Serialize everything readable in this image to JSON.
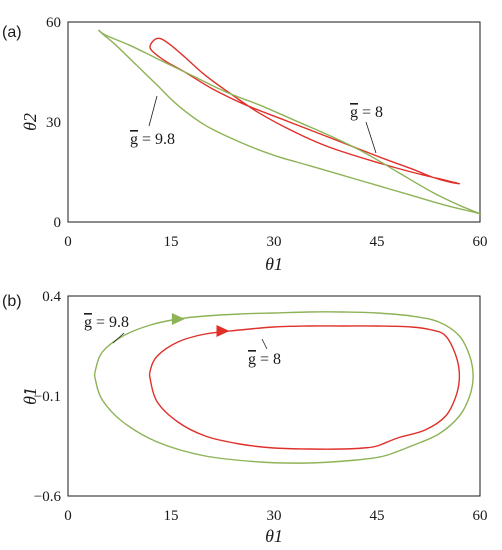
{
  "chart_data": [
    {
      "panel": "(a)",
      "type": "line",
      "xlabel": "θ1",
      "ylabel": "θ2",
      "xlim": [
        0,
        60
      ],
      "ylim": [
        0,
        60
      ],
      "xticks": [
        "0",
        "15",
        "30",
        "45",
        "60"
      ],
      "yticks": [
        "0",
        "30",
        "60"
      ],
      "grid": false,
      "series": [
        {
          "name": "g = 8",
          "color": "#e0302a",
          "points": [
            [
              12.5,
              54.5
            ],
            [
              12,
              52
            ],
            [
              14,
              48.5
            ],
            [
              17,
              45
            ],
            [
              21,
              40
            ],
            [
              26,
              35
            ],
            [
              31,
              31
            ],
            [
              36,
              27
            ],
            [
              41,
              23
            ],
            [
              46,
              19
            ],
            [
              50,
              16
            ],
            [
              53,
              13.5
            ],
            [
              55.5,
              12
            ],
            [
              57,
              11.5
            ],
            [
              55,
              12.5
            ],
            [
              50,
              15
            ],
            [
              44,
              18.5
            ],
            [
              38,
              22.5
            ],
            [
              33,
              27
            ],
            [
              28,
              32.5
            ],
            [
              24,
              38
            ],
            [
              20,
              44
            ],
            [
              17,
              49.5
            ],
            [
              15,
              53
            ],
            [
              13.5,
              55
            ]
          ]
        },
        {
          "name": "g = 9.8",
          "color": "#8db357",
          "points": [
            [
              4.5,
              57.5
            ],
            [
              5.5,
              56
            ],
            [
              9,
              53
            ],
            [
              13,
              49
            ],
            [
              18,
              44
            ],
            [
              23,
              39
            ],
            [
              28,
              35
            ],
            [
              33,
              30.5
            ],
            [
              38,
              26
            ],
            [
              43,
              21
            ],
            [
              48,
              15
            ],
            [
              53,
              9
            ],
            [
              57,
              5
            ],
            [
              60,
              2.5
            ],
            [
              59,
              3
            ],
            [
              55,
              5
            ],
            [
              50,
              8
            ],
            [
              45,
              11
            ],
            [
              40,
              14
            ],
            [
              35,
              17
            ],
            [
              30,
              20
            ],
            [
              25,
              24
            ],
            [
              20,
              29
            ],
            [
              16,
              35
            ],
            [
              13,
              41
            ],
            [
              10,
              47
            ],
            [
              7,
              53
            ],
            [
              5,
              56.5
            ]
          ]
        }
      ],
      "annotations": [
        {
          "text_prefix": "g",
          "text_value": "= 8",
          "series": "g = 8",
          "at": [
            43,
            20
          ]
        },
        {
          "text_prefix": "g",
          "text_value": "= 9.8",
          "series": "g = 9.8",
          "at": [
            13,
            46
          ]
        }
      ]
    },
    {
      "panel": "(b)",
      "type": "line",
      "xlabel": "θ1",
      "ylabel": "θ̇1",
      "xlim": [
        0,
        60
      ],
      "ylim": [
        -0.6,
        0.4
      ],
      "xticks": [
        "0",
        "15",
        "30",
        "45",
        "60"
      ],
      "yticks": [
        "−0.6",
        "−0.1",
        "0.4"
      ],
      "grid": false,
      "series": [
        {
          "name": "g = 8",
          "color": "#e0302a",
          "points": [
            [
              12,
              0.03
            ],
            [
              13,
              0.1
            ],
            [
              16,
              0.17
            ],
            [
              20,
              0.21
            ],
            [
              25,
              0.23
            ],
            [
              30,
              0.245
            ],
            [
              35,
              0.25
            ],
            [
              40,
              0.25
            ],
            [
              45,
              0.25
            ],
            [
              50,
              0.245
            ],
            [
              53,
              0.23
            ],
            [
              55,
              0.2
            ],
            [
              56.5,
              0.1
            ],
            [
              57,
              0
            ],
            [
              56.5,
              -0.1
            ],
            [
              55,
              -0.2
            ],
            [
              52,
              -0.27
            ],
            [
              48,
              -0.31
            ],
            [
              45,
              -0.35
            ],
            [
              43,
              -0.36
            ],
            [
              40,
              -0.365
            ],
            [
              35,
              -0.365
            ],
            [
              30,
              -0.36
            ],
            [
              25,
              -0.34
            ],
            [
              20,
              -0.3
            ],
            [
              16,
              -0.23
            ],
            [
              13,
              -0.13
            ],
            [
              12,
              -0.02
            ]
          ],
          "arrow": {
            "at": [
              22.5,
              0.225
            ],
            "direction": "right"
          }
        },
        {
          "name": "g = 9.8",
          "color": "#8db357",
          "points": [
            [
              4,
              0.03
            ],
            [
              5,
              0.12
            ],
            [
              8,
              0.2
            ],
            [
              12,
              0.255
            ],
            [
              16,
              0.285
            ],
            [
              20,
              0.3
            ],
            [
              25,
              0.31
            ],
            [
              30,
              0.315
            ],
            [
              35,
              0.32
            ],
            [
              40,
              0.32
            ],
            [
              45,
              0.315
            ],
            [
              50,
              0.3
            ],
            [
              54,
              0.27
            ],
            [
              57,
              0.2
            ],
            [
              58.5,
              0.1
            ],
            [
              59,
              0
            ],
            [
              58.5,
              -0.1
            ],
            [
              57,
              -0.2
            ],
            [
              54,
              -0.29
            ],
            [
              50,
              -0.35
            ],
            [
              46,
              -0.4
            ],
            [
              42,
              -0.42
            ],
            [
              35,
              -0.435
            ],
            [
              28,
              -0.43
            ],
            [
              20,
              -0.4
            ],
            [
              13,
              -0.33
            ],
            [
              8,
              -0.23
            ],
            [
              5,
              -0.12
            ],
            [
              4,
              -0.02
            ]
          ],
          "arrow": {
            "at": [
              16,
              0.285
            ],
            "direction": "right"
          }
        }
      ],
      "annotations": [
        {
          "text_prefix": "g",
          "text_value": "= 9.8",
          "series": "g = 9.8",
          "at": [
            6.5,
            0.18
          ]
        },
        {
          "text_prefix": "g",
          "text_value": "= 8",
          "series": "g = 8",
          "at": [
            28.5,
            0.2
          ]
        }
      ]
    }
  ]
}
